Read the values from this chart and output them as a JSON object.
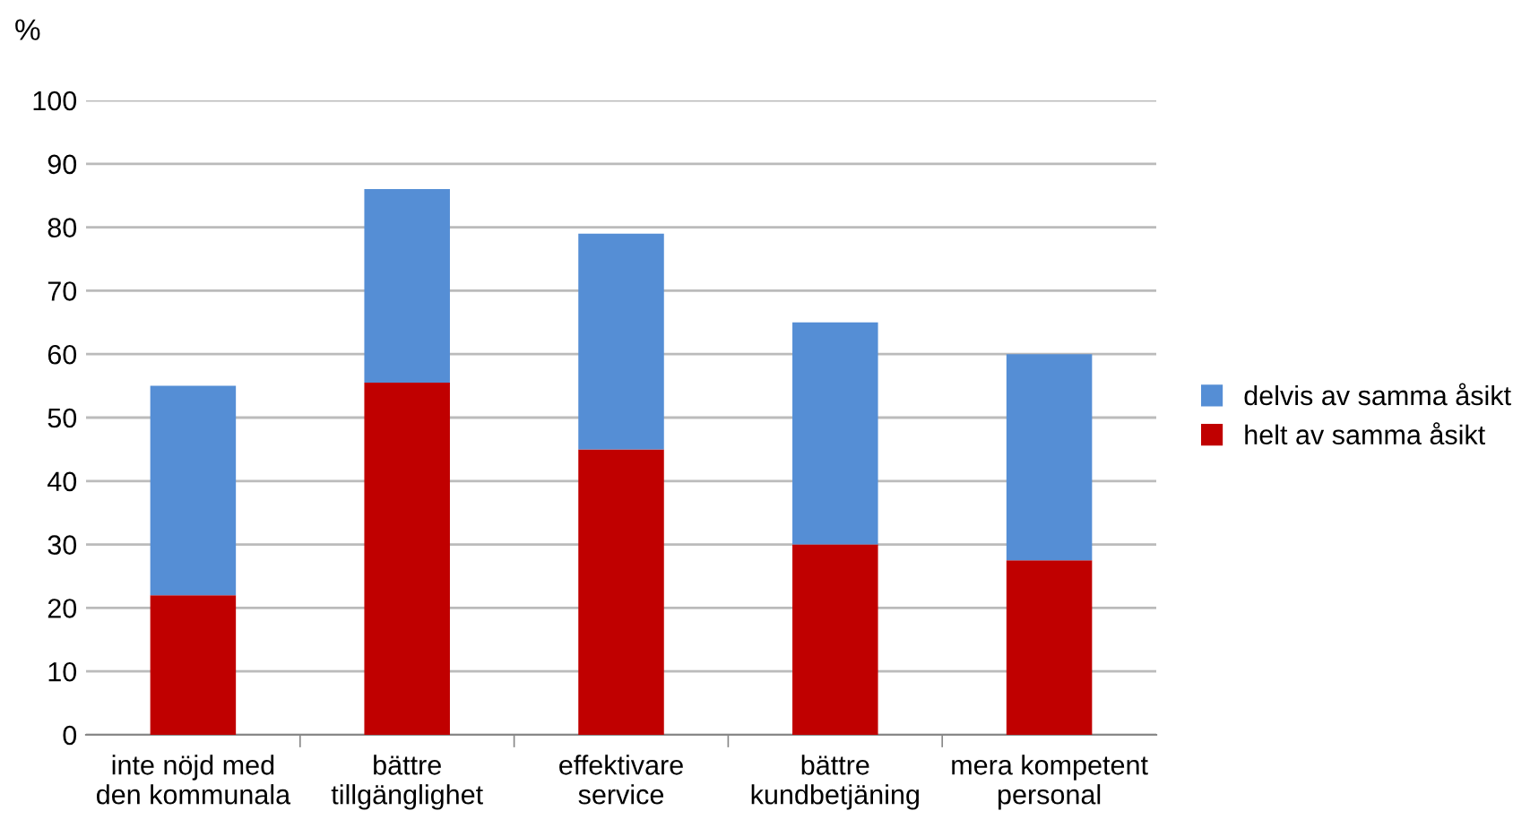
{
  "chart_data": {
    "type": "bar",
    "stacked": true,
    "ylabel": "%",
    "categories": [
      "inte nöjd med\nden kommunala",
      "bättre\ntillgänglighet",
      "effektivare\nservice",
      "bättre\nkundbetjäning",
      "mera kompetent\npersonal"
    ],
    "series": [
      {
        "name": "helt av samma åsikt",
        "color": "#c00000",
        "values": [
          22,
          55.5,
          45,
          30,
          27.5
        ]
      },
      {
        "name": "delvis av samma åsikt",
        "color": "#558ed5",
        "values": [
          33,
          30.5,
          34,
          35,
          32.5
        ]
      }
    ],
    "ylim": [
      0,
      100
    ],
    "yticks": [
      0,
      10,
      20,
      30,
      40,
      50,
      60,
      70,
      80,
      90,
      100
    ],
    "grid": "y",
    "legend": "right"
  }
}
